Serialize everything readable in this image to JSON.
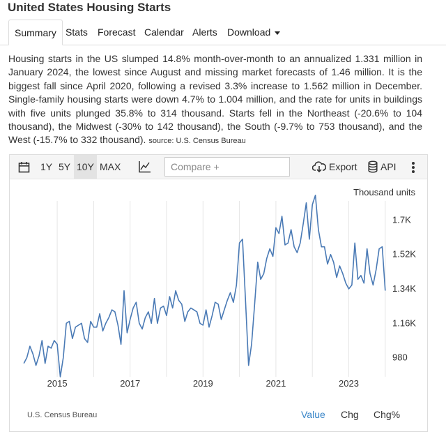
{
  "page": {
    "title": "United States Housing Starts"
  },
  "tabs": [
    {
      "label": "Summary",
      "active": true
    },
    {
      "label": "Stats"
    },
    {
      "label": "Forecast"
    },
    {
      "label": "Calendar"
    },
    {
      "label": "Alerts"
    },
    {
      "label": "Download",
      "has_dropdown": true
    }
  ],
  "description": {
    "text": "Housing starts in the US slumped 14.8% month-over-month to an annualized 1.331 million in January 2024, the lowest since August and missing market forecasts of 1.46 million. It is the biggest fall since April 2020, following a revised 3.3% increase to 1.562 million in December. Single-family housing starts were down 4.7% to 1.004 million, and the rate for units in buildings with five units plunged 35.8% to 314 thousand. Starts fell in the Northeast (-20.6% to 104 thousand), the Midwest (-30% to 142 thousand), the South (-9.7% to 753 thousand), and the West (-15.7% to 332 thousand).",
    "source": "source: U.S. Census Bureau"
  },
  "toolbar": {
    "ranges": [
      "1Y",
      "5Y",
      "10Y",
      "MAX"
    ],
    "active_range": "10Y",
    "compare_placeholder": "Compare +",
    "export_label": "Export",
    "api_label": "API"
  },
  "chart_footer": {
    "source": "U.S. Census Bureau",
    "modes": [
      "Value",
      "Chg",
      "Chg%"
    ],
    "active_mode": "Value"
  },
  "colors": {
    "line": "#4a7ab5",
    "active_link": "#3a86c8"
  },
  "chart_data": {
    "type": "line",
    "unit_label": "Thousand units",
    "x_ticks": [
      "2015",
      "2017",
      "2019",
      "2021",
      "2023"
    ],
    "y_ticks": [
      "980",
      "1.16K",
      "1.34K",
      "1.52K",
      "1.7K"
    ],
    "ylim": [
      880,
      1800
    ],
    "xlim": [
      2014.08,
      2024.08
    ],
    "grid": "vertical",
    "y_axis_position": "right",
    "series": [
      {
        "frequency": "monthly",
        "start": "2014-02",
        "values": [
          950,
          980,
          1040,
          1000,
          940,
          990,
          1070,
          950,
          1040,
          1030,
          1070,
          1050,
          880,
          980,
          1160,
          1170,
          1080,
          1140,
          1150,
          1160,
          1080,
          1060,
          1170,
          1140,
          1140,
          1210,
          1120,
          1160,
          1190,
          1230,
          1220,
          1150,
          1050,
          1330,
          1110,
          1180,
          1240,
          1270,
          1160,
          1130,
          1190,
          1220,
          1160,
          1290,
          1160,
          1240,
          1250,
          1200,
          1300,
          1240,
          1330,
          1280,
          1260,
          1170,
          1220,
          1240,
          1230,
          1220,
          1160,
          1150,
          1230,
          1140,
          1200,
          1270,
          1260,
          1180,
          1230,
          1280,
          1320,
          1270,
          1360,
          1580,
          1600,
          1280,
          940,
          1050,
          1260,
          1480,
          1390,
          1420,
          1500,
          1550,
          1510,
          1660,
          1630,
          1720,
          1570,
          1580,
          1650,
          1560,
          1530,
          1580,
          1680,
          1790,
          1600,
          1780,
          1830,
          1650,
          1560,
          1560,
          1470,
          1520,
          1480,
          1400,
          1460,
          1420,
          1370,
          1340,
          1360,
          1580,
          1390,
          1410,
          1370,
          1550,
          1420,
          1360,
          1440,
          1550,
          1560,
          1331
        ]
      }
    ]
  }
}
